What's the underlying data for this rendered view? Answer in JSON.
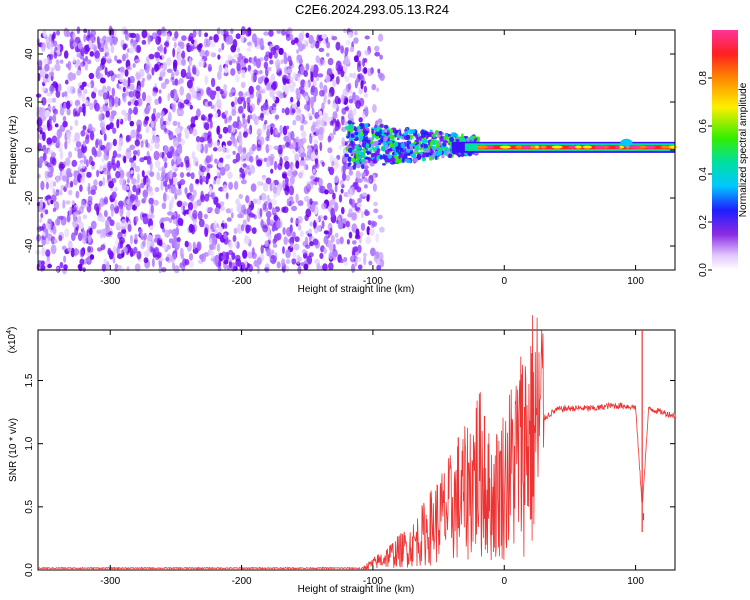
{
  "title": "C2E6.2024.293.05.13.R24",
  "chart_data": [
    {
      "type": "heatmap",
      "xlabel": "Height of straight line (km)",
      "ylabel": "Frequency (Hz)",
      "xlim": [
        -355,
        130
      ],
      "ylim": [
        -50,
        50
      ],
      "xticks": [
        -300,
        -200,
        -100,
        0,
        100
      ],
      "yticks": [
        -40,
        -20,
        0,
        20,
        40
      ],
      "signal": {
        "description_points": [
          {
            "x": -120,
            "y": 2
          },
          {
            "x": -60,
            "y": 3
          },
          {
            "x": -30,
            "y": 1
          },
          {
            "x": 0,
            "y": 1
          },
          {
            "x": 50,
            "y": 1
          },
          {
            "x": 90,
            "y": 1
          },
          {
            "x": 130,
            "y": 1
          }
        ]
      },
      "noise_region_xlim": [
        -355,
        -105
      ],
      "colorbar": {
        "label": "Normalized spectral amplitude",
        "range": [
          0,
          1
        ],
        "ticks": [
          0.0,
          0.2,
          0.4,
          0.6,
          0.8
        ],
        "tick_labels": [
          "0.0",
          "0.2",
          "0.4",
          "0.6",
          "0.8"
        ]
      }
    },
    {
      "type": "line",
      "xlabel": "Height of straight line (km)",
      "ylabel": "SNR (10 * v/v)",
      "yscale_label": "(x10",
      "yscale_exp": "4",
      "yscale_close": ")",
      "xlim": [
        -355,
        130
      ],
      "ylim": [
        0,
        1.9
      ],
      "xticks": [
        -300,
        -200,
        -100,
        0,
        100
      ],
      "yticks": [
        0.0,
        0.5,
        1.0,
        1.5
      ],
      "ytick_labels": [
        "0.0",
        "0.5",
        "1.0",
        "1.5"
      ],
      "color": "#ee3333",
      "series": [
        {
          "x": [
            -355,
            -110,
            -105,
            -100,
            -90,
            -80,
            -70,
            -60,
            -50,
            -40,
            -30,
            -20,
            -10,
            0,
            10,
            20,
            30,
            40,
            50,
            60,
            70,
            80,
            90,
            100,
            105,
            110,
            120,
            130
          ],
          "values": [
            0.0,
            0.0,
            0.03,
            0.05,
            0.1,
            0.15,
            0.2,
            0.3,
            0.4,
            0.5,
            0.6,
            0.8,
            0.55,
            0.7,
            0.9,
            1.1,
            1.2,
            1.27,
            1.28,
            1.28,
            1.28,
            1.3,
            1.3,
            1.29,
            0.5,
            1.28,
            1.25,
            1.22
          ]
        }
      ],
      "spikes": [
        {
          "x": -35,
          "y": 1.05
        },
        {
          "x": -15,
          "y": 1.22
        },
        {
          "x": 13,
          "y": 1.55
        },
        {
          "x": 105,
          "y": 1.92
        },
        {
          "x": 106,
          "y": 0.45
        }
      ]
    }
  ]
}
